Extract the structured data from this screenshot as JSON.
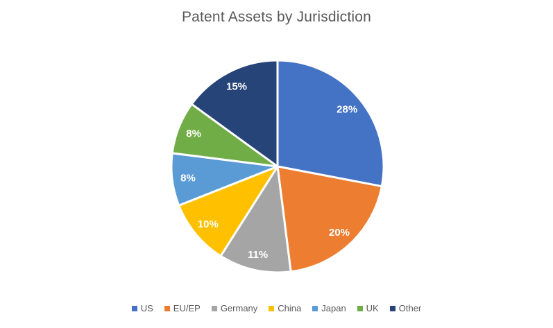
{
  "chart_data": {
    "type": "pie",
    "title": "Patent Assets by Jurisdiction",
    "title_color": "#595959",
    "data_label_color": "#FFFFFF",
    "legend_position": "bottom",
    "legend_text_color": "#595959",
    "background_color": "#FFFFFF",
    "start_angle_deg": 0,
    "direction": "clockwise",
    "categories": [
      "US",
      "EU/EP",
      "Germany",
      "China",
      "Japan",
      "UK",
      "Other"
    ],
    "values": [
      28,
      20,
      11,
      10,
      8,
      8,
      15
    ],
    "slices": [
      {
        "name": "US",
        "value": 28,
        "data_label": "28%",
        "color": "#4472C4"
      },
      {
        "name": "EU/EP",
        "value": 20,
        "data_label": "20%",
        "color": "#ED7D31"
      },
      {
        "name": "Germany",
        "value": 11,
        "data_label": "11%",
        "color": "#A5A5A5"
      },
      {
        "name": "China",
        "value": 10,
        "data_label": "10%",
        "color": "#FFC000"
      },
      {
        "name": "Japan",
        "value": 8,
        "data_label": "8%",
        "color": "#5B9BD5"
      },
      {
        "name": "UK",
        "value": 8,
        "data_label": "8%",
        "color": "#70AD47"
      },
      {
        "name": "Other",
        "value": 15,
        "data_label": "15%",
        "color": "#264478"
      }
    ]
  }
}
